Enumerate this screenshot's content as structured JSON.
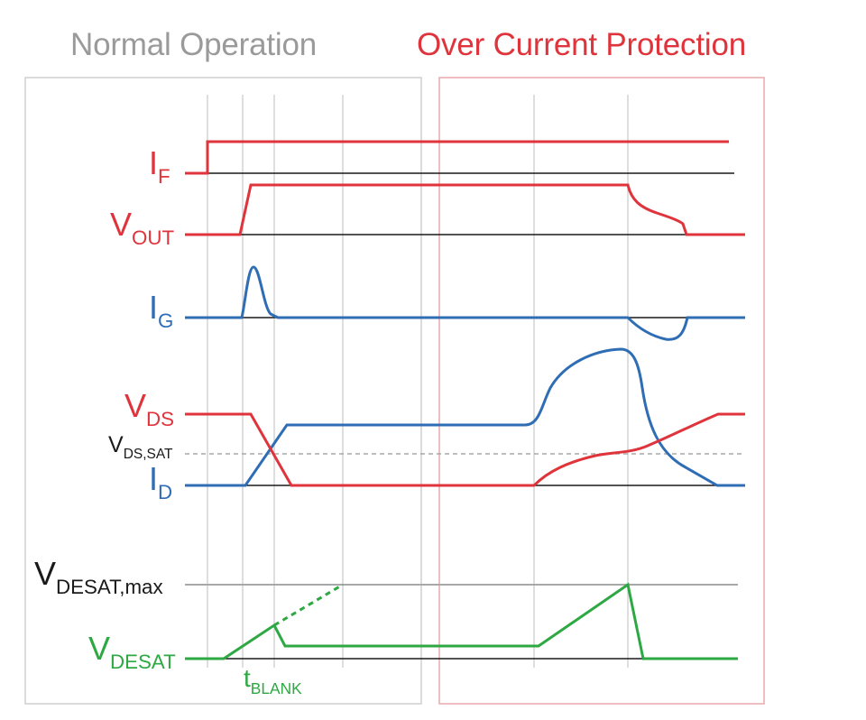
{
  "headers": {
    "normal": "Normal Operation",
    "ocp": "Over Current Protection"
  },
  "signals": {
    "if": {
      "main": "I",
      "sub": "F"
    },
    "vout": {
      "main": "V",
      "sub": "OUT"
    },
    "ig": {
      "main": "I",
      "sub": "G"
    },
    "vds": {
      "main": "V",
      "sub": "DS"
    },
    "vdssat": {
      "main": "V",
      "sub": "DS,SAT"
    },
    "id": {
      "main": "I",
      "sub": "D"
    },
    "vdesatmax": {
      "main": "V",
      "sub": "DESAT,max"
    },
    "vdesat": {
      "main": "V",
      "sub": "DESAT"
    },
    "tblank": {
      "main": "t",
      "sub": "BLANK"
    }
  },
  "colors": {
    "red": "#e0343c",
    "blue": "#2f6db5",
    "green": "#2ea843",
    "gray_text": "#9a9a9a",
    "black": "#1a1a1a",
    "panel_border_normal": "#cfcfcf",
    "panel_border_ocp": "#e8a9ab"
  }
}
